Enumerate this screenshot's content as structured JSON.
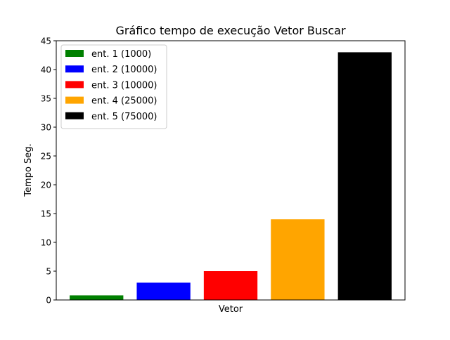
{
  "chart_data": {
    "type": "bar",
    "title": "Gráfico tempo de execução Vetor Buscar",
    "xlabel": "Vetor",
    "ylabel": "Tempo Seg.",
    "ylim": [
      0,
      45
    ],
    "yticks": [
      0,
      5,
      10,
      15,
      20,
      25,
      30,
      35,
      40,
      45
    ],
    "grid": false,
    "legend_position": "top-left",
    "series": [
      {
        "name": "ent. 1 (1000)",
        "value": 0.8,
        "color": "#008000"
      },
      {
        "name": "ent. 2 (10000)",
        "value": 3.0,
        "color": "#0000ff"
      },
      {
        "name": "ent. 3 (10000)",
        "value": 5.0,
        "color": "#ff0000"
      },
      {
        "name": "ent. 4 (25000)",
        "value": 14.0,
        "color": "#ffa500"
      },
      {
        "name": "ent. 5 (75000)",
        "value": 43.0,
        "color": "#000000"
      }
    ]
  }
}
